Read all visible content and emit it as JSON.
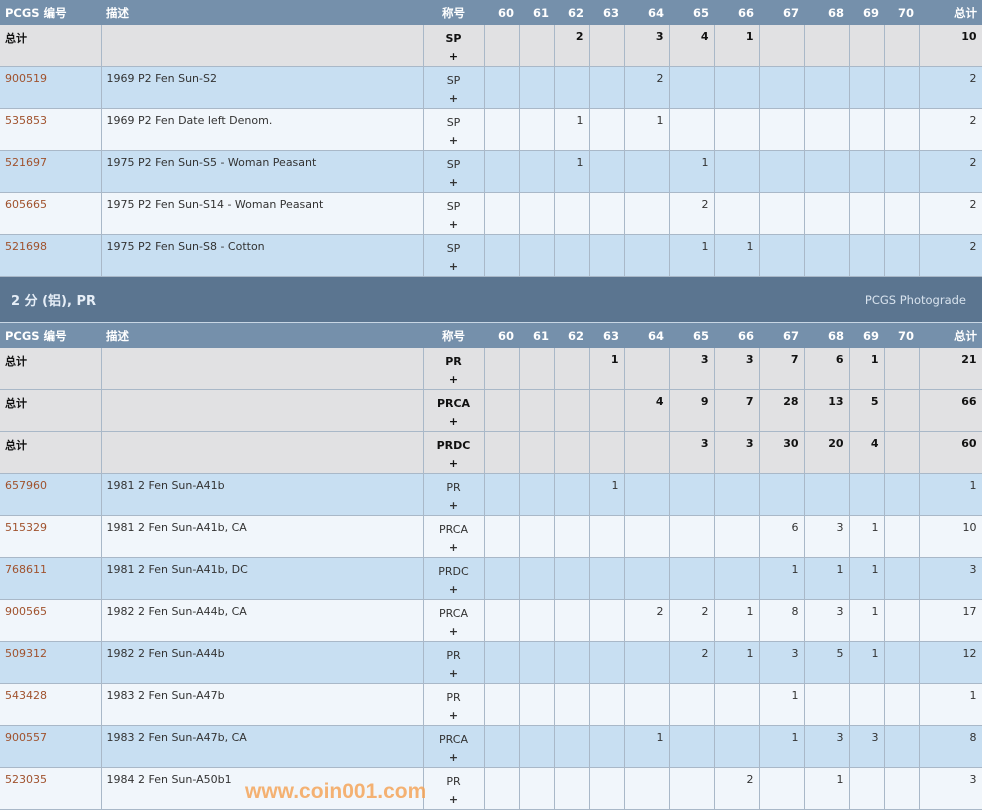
{
  "columns": [
    "PCGS 编号",
    "描述",
    "称号",
    "60",
    "61",
    "62",
    "63",
    "64",
    "65",
    "66",
    "67",
    "68",
    "69",
    "70",
    "总计"
  ],
  "grades": [
    "60",
    "61",
    "62",
    "63",
    "64",
    "65",
    "66",
    "67",
    "68",
    "69",
    "70"
  ],
  "sections": [
    {
      "title": "",
      "photograde": "",
      "rows": [
        {
          "total": true,
          "id": "总计",
          "desc": "",
          "des": "SP",
          "g": [
            "",
            "",
            "2",
            "",
            "3",
            "4",
            "1",
            "",
            "",
            "",
            ""
          ],
          "sum": "10"
        },
        {
          "id": "900519",
          "desc": "1969 P2 Fen Sun-S2",
          "des": "SP",
          "g": [
            "",
            "",
            "",
            "",
            "2",
            "",
            "",
            "",
            "",
            "",
            ""
          ],
          "sum": "2"
        },
        {
          "id": "535853",
          "desc": "1969 P2 Fen Date left Denom.",
          "des": "SP",
          "g": [
            "",
            "",
            "1",
            "",
            "1",
            "",
            "",
            "",
            "",
            "",
            ""
          ],
          "sum": "2"
        },
        {
          "id": "521697",
          "desc": "1975 P2 Fen Sun-S5 - Woman Peasant",
          "des": "SP",
          "g": [
            "",
            "",
            "1",
            "",
            "",
            "1",
            "",
            "",
            "",
            "",
            ""
          ],
          "sum": "2"
        },
        {
          "id": "605665",
          "desc": "1975 P2 Fen Sun-S14 - Woman Peasant",
          "des": "SP",
          "g": [
            "",
            "",
            "",
            "",
            "",
            "2",
            "",
            "",
            "",
            "",
            ""
          ],
          "sum": "2"
        },
        {
          "id": "521698",
          "desc": "1975 P2 Fen Sun-S8 - Cotton",
          "des": "SP",
          "g": [
            "",
            "",
            "",
            "",
            "",
            "1",
            "1",
            "",
            "",
            "",
            ""
          ],
          "sum": "2"
        }
      ]
    },
    {
      "title": "2 分 (铝), PR",
      "photograde": "PCGS Photograde",
      "rows": [
        {
          "total": true,
          "id": "总计",
          "desc": "",
          "des": "PR",
          "g": [
            "",
            "",
            "",
            "1",
            "",
            "3",
            "3",
            "7",
            "6",
            "1",
            ""
          ],
          "sum": "21"
        },
        {
          "total": true,
          "id": "总计",
          "desc": "",
          "des": "PRCA",
          "g": [
            "",
            "",
            "",
            "",
            "4",
            "9",
            "7",
            "28",
            "13",
            "5",
            ""
          ],
          "sum": "66"
        },
        {
          "total": true,
          "id": "总计",
          "desc": "",
          "des": "PRDC",
          "g": [
            "",
            "",
            "",
            "",
            "",
            "3",
            "3",
            "30",
            "20",
            "4",
            ""
          ],
          "sum": "60"
        },
        {
          "id": "657960",
          "desc": "1981 2 Fen Sun-A41b",
          "des": "PR",
          "g": [
            "",
            "",
            "",
            "1",
            "",
            "",
            "",
            "",
            "",
            "",
            ""
          ],
          "sum": "1"
        },
        {
          "id": "515329",
          "desc": "1981 2 Fen Sun-A41b, CA",
          "des": "PRCA",
          "g": [
            "",
            "",
            "",
            "",
            "",
            "",
            "",
            "6",
            "3",
            "1",
            ""
          ],
          "sum": "10"
        },
        {
          "id": "768611",
          "desc": "1981 2 Fen Sun-A41b, DC",
          "des": "PRDC",
          "g": [
            "",
            "",
            "",
            "",
            "",
            "",
            "",
            "1",
            "1",
            "1",
            ""
          ],
          "sum": "3"
        },
        {
          "id": "900565",
          "desc": "1982 2 Fen Sun-A44b, CA",
          "des": "PRCA",
          "g": [
            "",
            "",
            "",
            "",
            "2",
            "2",
            "1",
            "8",
            "3",
            "1",
            ""
          ],
          "sum": "17"
        },
        {
          "id": "509312",
          "desc": "1982 2 Fen Sun-A44b",
          "des": "PR",
          "g": [
            "",
            "",
            "",
            "",
            "",
            "2",
            "1",
            "3",
            "5",
            "1",
            ""
          ],
          "sum": "12"
        },
        {
          "id": "543428",
          "desc": "1983 2 Fen Sun-A47b",
          "des": "PR",
          "g": [
            "",
            "",
            "",
            "",
            "",
            "",
            "",
            "1",
            "",
            "",
            ""
          ],
          "sum": "1"
        },
        {
          "id": "900557",
          "desc": "1983 2 Fen Sun-A47b, CA",
          "des": "PRCA",
          "g": [
            "",
            "",
            "",
            "",
            "1",
            "",
            "",
            "1",
            "3",
            "3",
            ""
          ],
          "sum": "8"
        },
        {
          "id": "523035",
          "desc": "1984 2 Fen Sun-A50b1",
          "des": "PR",
          "g": [
            "",
            "",
            "",
            "",
            "",
            "",
            "2",
            "",
            "1",
            "",
            ""
          ],
          "sum": "3"
        }
      ]
    }
  ],
  "plus": "+",
  "watermark": "www.coin001.com",
  "colors": {
    "header": "#7590ab",
    "band": "#5b7590",
    "link": "#a0522d",
    "total_row": "#e1e1e3",
    "row_alt": "#c8dff2"
  }
}
